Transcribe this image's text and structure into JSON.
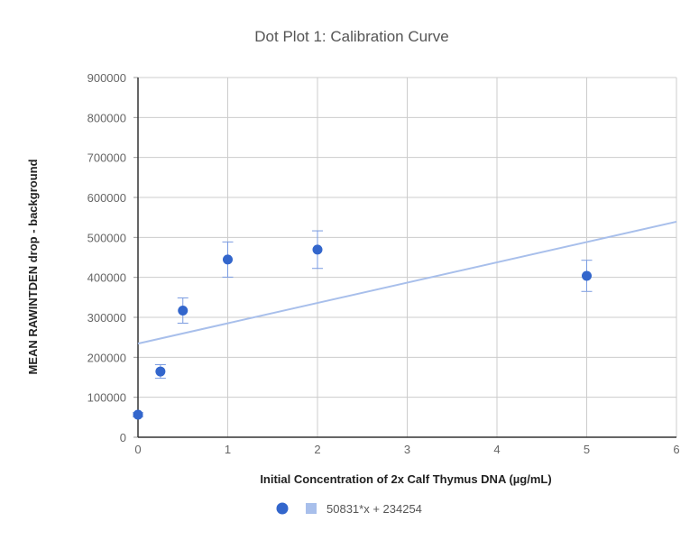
{
  "chart_data": {
    "type": "scatter",
    "title": "Dot Plot 1: Calibration Curve",
    "xlabel": "Initial Concentration of 2x Calf Thymus DNA (µg/mL)",
    "ylabel": "MEAN RAWINTDEN drop - background",
    "xlim": [
      0,
      6
    ],
    "ylim": [
      0,
      900000
    ],
    "x_ticks": [
      "0",
      "1",
      "2",
      "3",
      "4",
      "5",
      "6"
    ],
    "y_ticks": [
      "0",
      "100000",
      "200000",
      "300000",
      "400000",
      "500000",
      "600000",
      "700000",
      "800000",
      "900000"
    ],
    "grid": true,
    "legend_position": "bottom",
    "series": [
      {
        "x": [
          0,
          0.25,
          0.5,
          1,
          2,
          5
        ],
        "y": [
          56400,
          164500,
          317000,
          444600,
          469400,
          403800
        ],
        "error": [
          5000,
          17000,
          31600,
          44000,
          47000,
          39000
        ],
        "color": "#3366cc"
      }
    ],
    "trendline": {
      "label": "50831*x + 234254",
      "slope": 50831,
      "intercept": 234254,
      "color": "#a8bfeb"
    }
  }
}
